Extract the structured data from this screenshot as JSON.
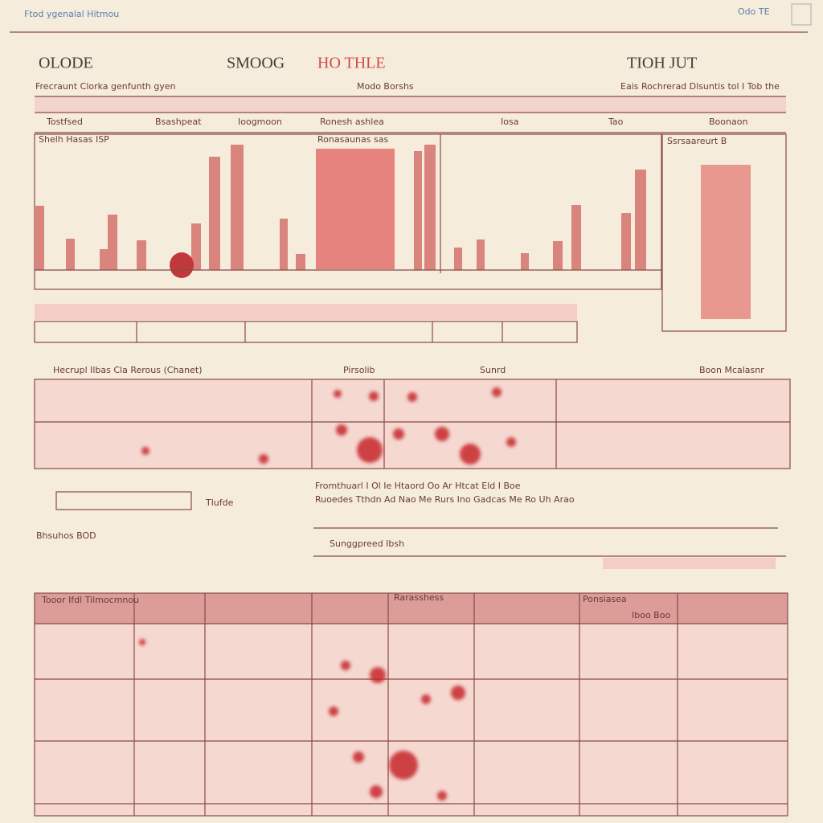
{
  "header": {
    "title": "Ftod ygenalal Hitmou",
    "badge": "Odo TE"
  },
  "headings": [
    "OLODE",
    "SMOOG",
    "HO THLE",
    "TIOH JUT"
  ],
  "subtitles": [
    "Frecraunt Clorka genfunth gyen",
    "Modo Borshs",
    "Eais Rochrerad Dlsuntis  tol  I Tob the"
  ],
  "columns": [
    "Tostfsed",
    "Bsashpeat",
    "Ioogmoon",
    "Ronesh ashlea",
    "Iosa",
    "Tao",
    "Boonaon"
  ],
  "chart_labels": [
    "Shelh Hasas ISP",
    "Ronasaunas sas",
    "Ssrsaareurt B"
  ],
  "sections": [
    "Hecrupl Ilbas  Cla Rerous (Chanet)",
    "Pirsolib",
    "Sunrd",
    "Boon Mcalasnr"
  ],
  "notes": [
    "Fromthuarl  I Ol  Ie Htaord Oo Ar Htcat Eld  I  Boe",
    "Ruoedes Tthdn Ad Nao Me Rurs Ino Gadcas Me Ro Uh Arao",
    "Tlufde",
    "Sunggpreed  Ibsh",
    "Bhsuhos BOD"
  ],
  "bottom_headers": [
    "Tooor Ifdl Tilmocmnou",
    "Rarasshess",
    "Ponsiasea",
    "Iboo Boo"
  ]
}
